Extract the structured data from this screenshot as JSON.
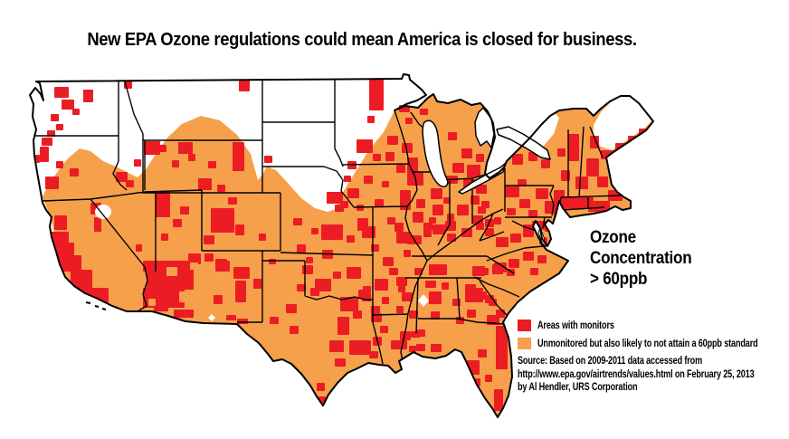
{
  "title": {
    "text": "New EPA Ozone regulations could mean America is closed for business."
  },
  "annotation": {
    "lines": [
      "Ozone",
      "Concentration",
      "> 60ppb"
    ]
  },
  "legend": {
    "items": [
      {
        "label": "Areas with monitors",
        "color_key": "monitored"
      },
      {
        "label": "Unmonitored but also likely to not attain a 60ppb standard",
        "color_key": "unmonitored"
      }
    ]
  },
  "source": {
    "lines": [
      "Source: Based on 2009-2011 data accessed from",
      "http://www.epa.gov/airtrends/values.html on February 25, 2013",
      "by Al Hendler, URS Corporation"
    ]
  },
  "colors": {
    "monitored": "#EC1C24",
    "unmonitored": "#F6A04C",
    "border": "#000000",
    "background": "#FFFFFF"
  },
  "map": {
    "red_patches": [
      [
        60,
        96,
        16,
        12
      ],
      [
        68,
        110,
        14,
        11
      ],
      [
        56,
        126,
        9,
        8
      ],
      [
        92,
        99,
        11,
        14
      ],
      [
        52,
        144,
        9,
        7
      ],
      [
        62,
        137,
        8,
        7
      ],
      [
        80,
        120,
        8,
        7
      ],
      [
        46,
        152,
        12,
        9
      ],
      [
        44,
        162,
        10,
        17
      ],
      [
        50,
        195,
        15,
        14
      ],
      [
        77,
        186,
        10,
        9
      ],
      [
        37,
        171,
        7,
        9
      ],
      [
        62,
        178,
        8,
        8
      ],
      [
        60,
        238,
        14,
        16
      ],
      [
        56,
        256,
        20,
        28
      ],
      [
        64,
        282,
        26,
        26
      ],
      [
        78,
        302,
        24,
        20
      ],
      [
        80,
        318,
        40,
        22
      ],
      [
        92,
        336,
        30,
        10
      ],
      [
        120,
        340,
        14,
        6
      ],
      [
        88,
        298,
        14,
        12
      ],
      [
        70,
        268,
        12,
        14
      ],
      [
        100,
        224,
        12,
        13
      ],
      [
        104,
        240,
        8,
        16
      ],
      [
        158,
        288,
        14,
        12
      ],
      [
        150,
        270,
        7,
        8
      ],
      [
        128,
        190,
        13,
        11
      ],
      [
        139,
        199,
        9,
        8
      ],
      [
        137,
        89,
        9,
        9
      ],
      [
        148,
        176,
        8,
        8
      ],
      [
        197,
        157,
        16,
        13
      ],
      [
        264,
        88,
        12,
        13
      ],
      [
        208,
        170,
        8,
        8
      ],
      [
        176,
        160,
        8,
        8
      ],
      [
        159,
        156,
        18,
        15
      ],
      [
        257,
        157,
        13,
        32
      ],
      [
        219,
        197,
        15,
        13
      ],
      [
        240,
        204,
        9,
        8
      ],
      [
        190,
        177,
        8,
        8
      ],
      [
        230,
        178,
        9,
        8
      ],
      [
        172,
        212,
        16,
        28
      ],
      [
        191,
        242,
        10,
        9
      ],
      [
        199,
        228,
        10,
        9
      ],
      [
        178,
        258,
        8,
        8
      ],
      [
        233,
        230,
        26,
        27
      ],
      [
        225,
        260,
        12,
        10
      ],
      [
        260,
        248,
        10,
        12
      ],
      [
        238,
        286,
        13,
        9
      ],
      [
        286,
        258,
        8,
        8
      ],
      [
        252,
        218,
        10,
        8
      ],
      [
        162,
        288,
        52,
        32
      ],
      [
        158,
        318,
        46,
        22
      ],
      [
        192,
        342,
        22,
        9
      ],
      [
        170,
        336,
        16,
        8
      ],
      [
        208,
        280,
        14,
        12
      ],
      [
        238,
        288,
        16,
        12
      ],
      [
        258,
        295,
        18,
        13
      ],
      [
        260,
        310,
        12,
        24
      ],
      [
        236,
        326,
        10,
        10
      ],
      [
        280,
        308,
        9,
        11
      ],
      [
        250,
        348,
        11,
        6
      ],
      [
        226,
        280,
        10,
        9
      ],
      [
        292,
        172,
        9,
        8
      ],
      [
        324,
        241,
        10,
        8
      ],
      [
        361,
        212,
        18,
        13
      ],
      [
        370,
        226,
        10,
        8
      ],
      [
        344,
        252,
        8,
        7
      ],
      [
        355,
        248,
        24,
        17
      ],
      [
        328,
        270,
        10,
        9
      ],
      [
        356,
        276,
        12,
        10
      ],
      [
        395,
        241,
        12,
        14
      ],
      [
        383,
        260,
        9,
        8
      ],
      [
        338,
        284,
        8,
        7
      ],
      [
        348,
        308,
        18,
        14
      ],
      [
        383,
        295,
        16,
        13
      ],
      [
        328,
        314,
        10,
        8
      ],
      [
        401,
        316,
        9,
        8
      ],
      [
        297,
        286,
        8,
        6
      ],
      [
        368,
        300,
        9,
        8
      ],
      [
        262,
        352,
        12,
        6
      ],
      [
        334,
        293,
        12,
        10
      ],
      [
        343,
        318,
        10,
        9
      ],
      [
        316,
        336,
        12,
        10
      ],
      [
        376,
        328,
        20,
        16
      ],
      [
        396,
        320,
        12,
        10
      ],
      [
        373,
        350,
        13,
        20
      ],
      [
        390,
        343,
        10,
        9
      ],
      [
        386,
        376,
        24,
        16
      ],
      [
        364,
        376,
        16,
        13
      ],
      [
        412,
        372,
        10,
        10
      ],
      [
        370,
        396,
        12,
        9
      ],
      [
        350,
        423,
        9,
        9
      ],
      [
        352,
        438,
        8,
        7
      ],
      [
        410,
        338,
        10,
        9
      ],
      [
        298,
        350,
        10,
        8
      ],
      [
        320,
        360,
        10,
        9
      ],
      [
        408,
        88,
        16,
        34
      ],
      [
        394,
        154,
        18,
        15
      ],
      [
        384,
        178,
        10,
        9
      ],
      [
        406,
        128,
        8,
        8
      ],
      [
        380,
        194,
        8,
        7
      ],
      [
        412,
        170,
        9,
        8
      ],
      [
        428,
        150,
        12,
        10
      ],
      [
        444,
        158,
        12,
        11
      ],
      [
        450,
        174,
        12,
        22
      ],
      [
        426,
        168,
        10,
        10
      ],
      [
        438,
        182,
        10,
        9
      ],
      [
        441,
        116,
        12,
        8
      ],
      [
        464,
        120,
        9,
        7
      ],
      [
        495,
        146,
        10,
        9
      ],
      [
        510,
        164,
        12,
        11
      ],
      [
        500,
        180,
        13,
        11
      ],
      [
        516,
        182,
        15,
        14
      ],
      [
        526,
        170,
        9,
        9
      ],
      [
        491,
        194,
        9,
        7
      ],
      [
        448,
        130,
        8,
        7
      ],
      [
        384,
        208,
        13,
        11
      ],
      [
        402,
        194,
        10,
        9
      ],
      [
        414,
        220,
        10,
        8
      ],
      [
        376,
        222,
        9,
        8
      ],
      [
        394,
        226,
        8,
        7
      ],
      [
        422,
        200,
        8,
        7
      ],
      [
        400,
        250,
        15,
        13
      ],
      [
        438,
        256,
        15,
        13
      ],
      [
        423,
        284,
        12,
        10
      ],
      [
        410,
        270,
        9,
        8
      ],
      [
        446,
        276,
        8,
        8
      ],
      [
        428,
        240,
        9,
        8
      ],
      [
        414,
        308,
        15,
        13
      ],
      [
        400,
        324,
        10,
        9
      ],
      [
        430,
        296,
        10,
        8
      ],
      [
        422,
        328,
        8,
        8
      ],
      [
        440,
        316,
        8,
        7
      ],
      [
        410,
        346,
        12,
        10
      ],
      [
        432,
        376,
        18,
        10
      ],
      [
        442,
        366,
        12,
        10
      ],
      [
        408,
        388,
        10,
        8
      ],
      [
        452,
        382,
        8,
        7
      ],
      [
        420,
        360,
        9,
        8
      ],
      [
        450,
        190,
        18,
        15
      ],
      [
        442,
        210,
        12,
        22
      ],
      [
        456,
        234,
        12,
        12
      ],
      [
        436,
        246,
        10,
        10
      ],
      [
        460,
        220,
        10,
        10
      ],
      [
        468,
        254,
        9,
        8
      ],
      [
        474,
        240,
        8,
        7
      ],
      [
        476,
        208,
        13,
        12
      ],
      [
        478,
        226,
        12,
        12
      ],
      [
        468,
        246,
        10,
        9
      ],
      [
        486,
        196,
        10,
        8
      ],
      [
        494,
        236,
        8,
        8
      ],
      [
        490,
        218,
        8,
        7
      ],
      [
        512,
        198,
        14,
        11
      ],
      [
        505,
        226,
        13,
        12
      ],
      [
        492,
        244,
        12,
        11
      ],
      [
        496,
        194,
        10,
        9
      ],
      [
        520,
        216,
        10,
        10
      ],
      [
        526,
        204,
        12,
        10
      ],
      [
        532,
        222,
        9,
        8
      ],
      [
        450,
        260,
        16,
        10
      ],
      [
        478,
        248,
        14,
        11
      ],
      [
        510,
        252,
        12,
        10
      ],
      [
        494,
        258,
        10,
        9
      ],
      [
        526,
        246,
        9,
        8
      ],
      [
        474,
        292,
        20,
        12
      ],
      [
        438,
        306,
        12,
        10
      ],
      [
        522,
        294,
        14,
        11
      ],
      [
        544,
        292,
        12,
        11
      ],
      [
        560,
        297,
        9,
        8
      ],
      [
        458,
        296,
        9,
        8
      ],
      [
        444,
        323,
        12,
        10
      ],
      [
        452,
        343,
        10,
        9
      ],
      [
        454,
        366,
        10,
        7
      ],
      [
        438,
        338,
        8,
        8
      ],
      [
        474,
        322,
        14,
        14
      ],
      [
        476,
        344,
        10,
        9
      ],
      [
        460,
        364,
        10,
        8
      ],
      [
        470,
        310,
        12,
        8
      ],
      [
        488,
        312,
        8,
        8
      ],
      [
        514,
        318,
        20,
        16
      ],
      [
        516,
        342,
        10,
        9
      ],
      [
        536,
        326,
        10,
        9
      ],
      [
        548,
        342,
        10,
        9
      ],
      [
        500,
        330,
        9,
        8
      ],
      [
        504,
        350,
        9,
        8
      ],
      [
        460,
        380,
        10,
        8
      ],
      [
        476,
        380,
        12,
        9
      ],
      [
        538,
        348,
        14,
        11
      ],
      [
        548,
        360,
        13,
        48
      ],
      [
        514,
        398,
        16,
        16
      ],
      [
        546,
        430,
        10,
        24
      ],
      [
        528,
        386,
        10,
        9
      ],
      [
        522,
        418,
        9,
        9
      ],
      [
        536,
        414,
        8,
        8
      ],
      [
        514,
        314,
        12,
        10
      ],
      [
        528,
        322,
        10,
        9
      ],
      [
        540,
        330,
        9,
        8
      ],
      [
        520,
        326,
        8,
        8
      ],
      [
        546,
        290,
        14,
        11
      ],
      [
        562,
        286,
        12,
        10
      ],
      [
        578,
        278,
        12,
        10
      ],
      [
        594,
        282,
        10,
        9
      ],
      [
        530,
        296,
        10,
        8
      ],
      [
        586,
        296,
        9,
        8
      ],
      [
        548,
        262,
        14,
        11
      ],
      [
        564,
        258,
        12,
        10
      ],
      [
        578,
        252,
        12,
        10
      ],
      [
        596,
        262,
        9,
        8
      ],
      [
        536,
        252,
        10,
        9
      ],
      [
        522,
        238,
        12,
        10
      ],
      [
        536,
        242,
        10,
        9
      ],
      [
        528,
        228,
        9,
        8
      ],
      [
        546,
        240,
        8,
        8
      ],
      [
        558,
        206,
        16,
        12
      ],
      [
        592,
        208,
        14,
        12
      ],
      [
        574,
        220,
        12,
        10
      ],
      [
        602,
        222,
        12,
        14
      ],
      [
        560,
        230,
        10,
        8
      ],
      [
        584,
        232,
        10,
        8
      ],
      [
        572,
        198,
        10,
        8
      ],
      [
        548,
        162,
        16,
        14
      ],
      [
        556,
        150,
        12,
        10
      ],
      [
        566,
        170,
        12,
        12
      ],
      [
        584,
        168,
        10,
        10
      ],
      [
        598,
        176,
        10,
        10
      ],
      [
        616,
        164,
        9,
        9
      ],
      [
        620,
        188,
        10,
        12
      ],
      [
        612,
        210,
        12,
        30
      ],
      [
        618,
        218,
        38,
        13
      ],
      [
        650,
        222,
        24,
        12
      ],
      [
        672,
        210,
        16,
        12
      ],
      [
        660,
        195,
        12,
        12
      ],
      [
        636,
        195,
        14,
        14
      ],
      [
        628,
        148,
        12,
        30
      ],
      [
        648,
        175,
        14,
        20
      ],
      [
        652,
        150,
        10,
        14
      ],
      [
        664,
        166,
        14,
        10
      ],
      [
        680,
        158,
        12,
        10
      ],
      [
        694,
        150,
        10,
        9
      ],
      [
        706,
        142,
        9,
        8
      ],
      [
        700,
        160,
        8,
        7
      ],
      [
        588,
        244,
        16,
        10
      ],
      [
        602,
        246,
        8,
        10
      ],
      [
        578,
        248,
        10,
        8
      ]
    ],
    "orange_patches": [
      [
        184,
        295,
        12,
        10
      ],
      [
        198,
        322,
        12,
        12
      ],
      [
        164,
        330,
        8,
        8
      ],
      [
        210,
        290,
        9,
        8
      ],
      [
        138,
        330,
        16,
        14
      ],
      [
        128,
        332,
        12,
        10
      ],
      [
        94,
        326,
        8,
        6
      ],
      [
        70,
        300,
        8,
        8
      ]
    ]
  }
}
